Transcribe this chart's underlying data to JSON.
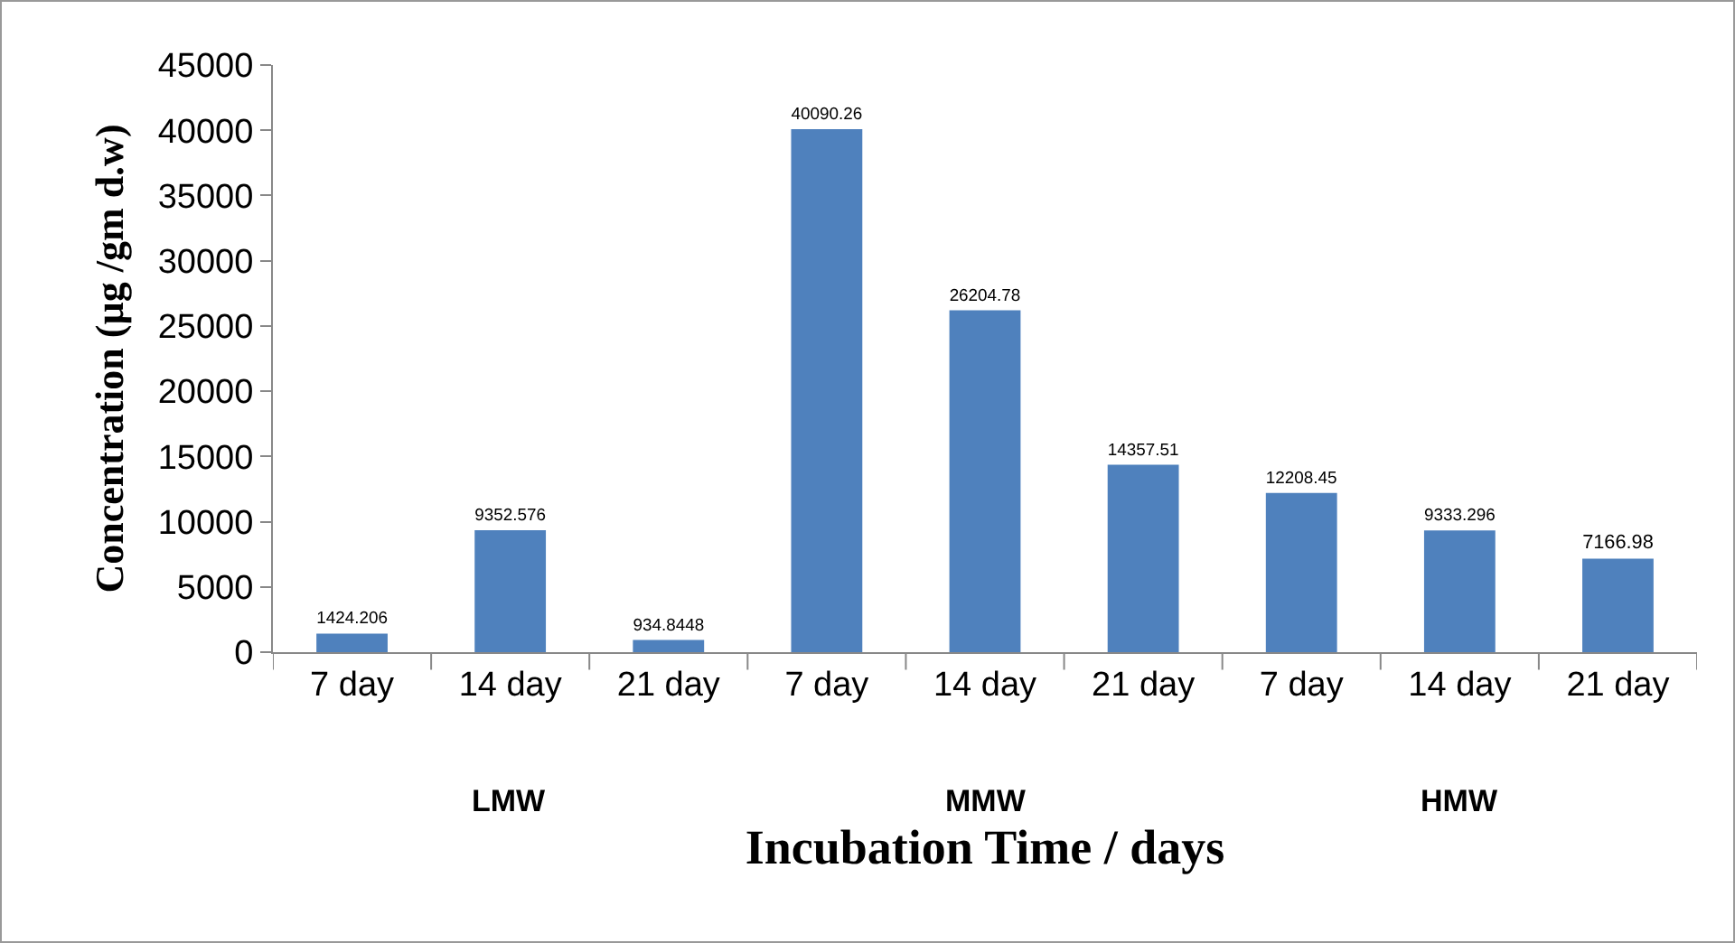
{
  "chart_data": {
    "type": "bar",
    "xlabel": "Incubation Time / days",
    "ylabel": "Concentration (µg /gm d.w)",
    "categories": [
      "7 day",
      "14 day",
      "21 day",
      "7 day",
      "14 day",
      "21 day",
      "7 day",
      "14 day",
      "21 day"
    ],
    "values": [
      1424.206,
      9352.576,
      934.8448,
      40090.26,
      26204.78,
      14357.51,
      12208.45,
      9333.296,
      7166.98
    ],
    "color": "#4f81bd",
    "data_labels": true,
    "grid": false,
    "legend": false,
    "ylim": [
      0,
      45000
    ],
    "yticks": [
      0,
      5000,
      10000,
      15000,
      20000,
      25000,
      30000,
      35000,
      40000,
      45000
    ],
    "annotations": [
      "LMW",
      "MMW",
      "HMW"
    ]
  }
}
